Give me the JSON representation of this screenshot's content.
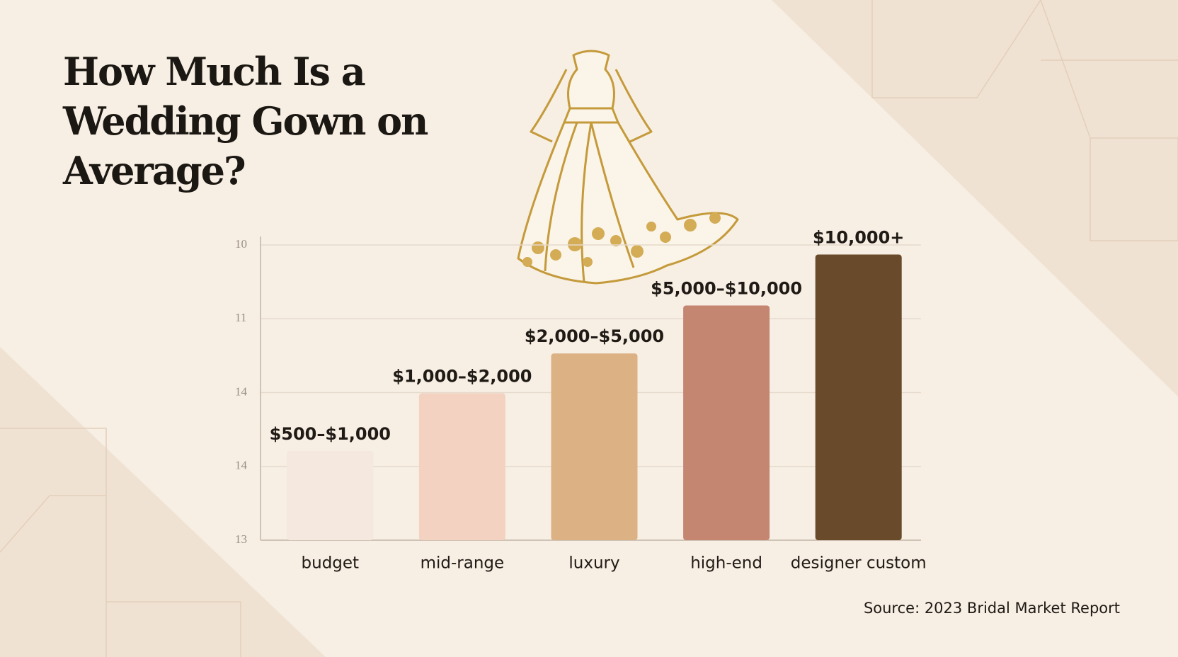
{
  "chart_data": {
    "type": "bar",
    "title": "How Much Is a Wedding Gown on Average?",
    "title_lines": [
      "How Much Is a",
      "Wedding Gown on",
      "Average?"
    ],
    "categories": [
      "budget",
      "mid-range",
      "luxury",
      "high-end",
      "designer custom"
    ],
    "values": [
      1.21,
      1.99,
      2.53,
      3.18,
      3.87
    ],
    "annotations": [
      "$500–$1,000",
      "$1,000–$2,000",
      "$2,000–$5,000",
      "$5,000–$10,000",
      "$10,000+"
    ],
    "colors": [
      "#f5e8de",
      "#f3d2c1",
      "#dcb183",
      "#c58671",
      "#694a2a"
    ],
    "ylim": [
      0,
      4
    ],
    "yticks": [
      {
        "value": 0,
        "label": "13"
      },
      {
        "value": 1,
        "label": "14"
      },
      {
        "value": 2,
        "label": "14"
      },
      {
        "value": 3,
        "label": "11"
      },
      {
        "value": 4,
        "label": "10"
      }
    ],
    "grid": true,
    "source": "Source: 2023 Bridal Market Report"
  }
}
